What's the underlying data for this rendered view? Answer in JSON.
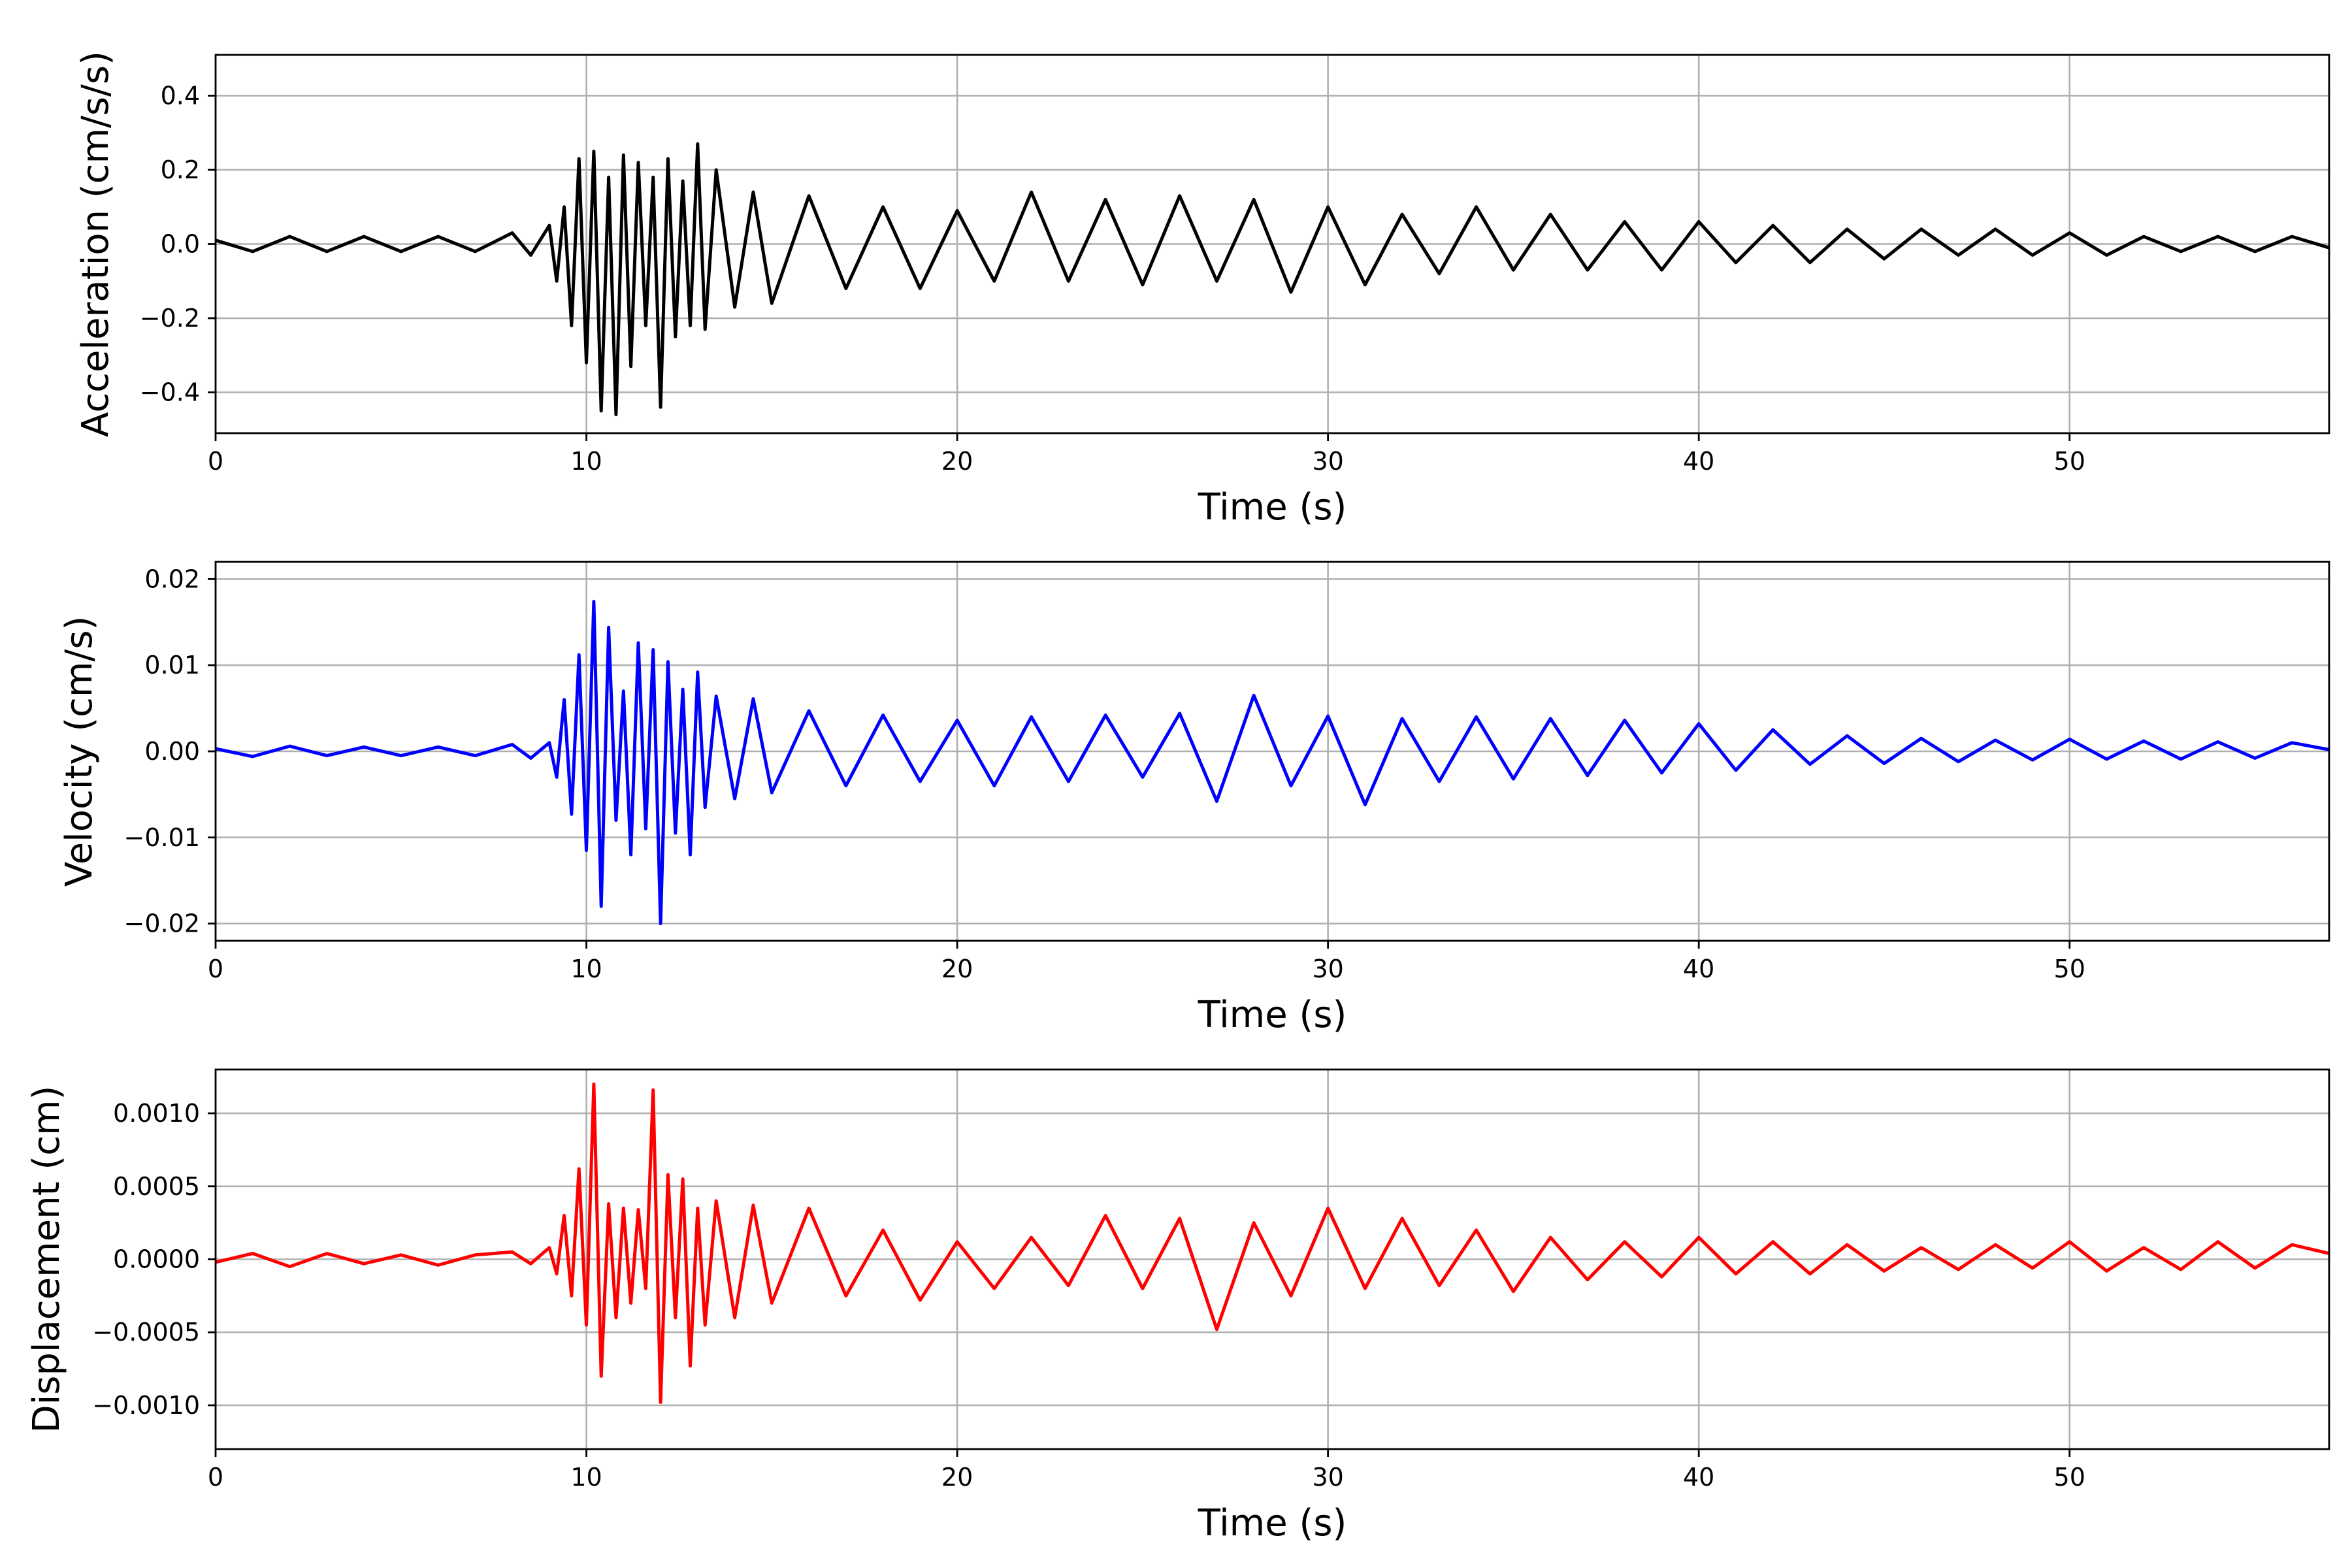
{
  "figure": {
    "background": "#ffffff",
    "grid_color": "#b0b0b0"
  },
  "chart_data": [
    {
      "type": "line",
      "title": "",
      "xlabel": "Time (s)",
      "ylabel": "Acceleration (cm/s/s)",
      "xlim": [
        0,
        57
      ],
      "ylim": [
        -0.51,
        0.51
      ],
      "xticks": [
        0,
        10,
        20,
        30,
        40,
        50
      ],
      "xtick_labels": [
        "0",
        "10",
        "20",
        "30",
        "40",
        "50"
      ],
      "yticks": [
        -0.4,
        -0.2,
        0.0,
        0.2,
        0.4
      ],
      "ytick_labels": [
        "−0.4",
        "−0.2",
        "0.0",
        "0.2",
        "0.4"
      ],
      "grid": true,
      "series": [
        {
          "color": "#000000",
          "x": [
            0,
            1,
            2,
            3,
            4,
            5,
            6,
            7,
            8,
            8.5,
            9,
            9.2,
            9.4,
            9.6,
            9.8,
            10,
            10.2,
            10.4,
            10.6,
            10.8,
            11,
            11.2,
            11.4,
            11.6,
            11.8,
            12,
            12.2,
            12.4,
            12.6,
            12.8,
            13,
            13.2,
            13.5,
            14,
            14.5,
            15,
            16,
            17,
            18,
            19,
            20,
            21,
            22,
            23,
            24,
            25,
            26,
            27,
            28,
            29,
            30,
            31,
            32,
            33,
            34,
            35,
            36,
            37,
            38,
            39,
            40,
            41,
            42,
            43,
            44,
            45,
            46,
            47,
            48,
            49,
            50,
            51,
            52,
            53,
            54,
            55,
            56,
            57
          ],
          "y": [
            0.01,
            -0.02,
            0.02,
            -0.02,
            0.02,
            -0.02,
            0.02,
            -0.02,
            0.03,
            -0.03,
            0.05,
            -0.1,
            0.1,
            -0.22,
            0.23,
            -0.32,
            0.25,
            -0.45,
            0.18,
            -0.46,
            0.24,
            -0.33,
            0.22,
            -0.22,
            0.18,
            -0.44,
            0.23,
            -0.25,
            0.17,
            -0.22,
            0.27,
            -0.23,
            0.2,
            -0.17,
            0.14,
            -0.16,
            0.13,
            -0.12,
            0.1,
            -0.12,
            0.09,
            -0.1,
            0.14,
            -0.1,
            0.12,
            -0.11,
            0.13,
            -0.1,
            0.12,
            -0.13,
            0.1,
            -0.11,
            0.08,
            -0.08,
            0.1,
            -0.07,
            0.08,
            -0.07,
            0.06,
            -0.07,
            0.06,
            -0.05,
            0.05,
            -0.05,
            0.04,
            -0.04,
            0.04,
            -0.03,
            0.04,
            -0.03,
            0.03,
            -0.03,
            0.02,
            -0.02,
            0.02,
            -0.02,
            0.02,
            -0.01
          ]
        }
      ]
    },
    {
      "type": "line",
      "title": "",
      "xlabel": "Time (s)",
      "ylabel": "Velocity (cm/s)",
      "xlim": [
        0,
        57
      ],
      "ylim": [
        -0.022,
        0.022
      ],
      "xticks": [
        0,
        10,
        20,
        30,
        40,
        50
      ],
      "xtick_labels": [
        "0",
        "10",
        "20",
        "30",
        "40",
        "50"
      ],
      "yticks": [
        -0.02,
        -0.01,
        0.0,
        0.01,
        0.02
      ],
      "ytick_labels": [
        "−0.02",
        "−0.01",
        "0.00",
        "0.01",
        "0.02"
      ],
      "grid": true,
      "series": [
        {
          "color": "#0000ff",
          "x": [
            0,
            1,
            2,
            3,
            4,
            5,
            6,
            7,
            8,
            8.5,
            9,
            9.2,
            9.4,
            9.6,
            9.8,
            10,
            10.2,
            10.4,
            10.6,
            10.8,
            11,
            11.2,
            11.4,
            11.6,
            11.8,
            12,
            12.2,
            12.4,
            12.6,
            12.8,
            13,
            13.2,
            13.5,
            14,
            14.5,
            15,
            16,
            17,
            18,
            19,
            20,
            21,
            22,
            23,
            24,
            25,
            26,
            27,
            28,
            29,
            30,
            31,
            32,
            33,
            34,
            35,
            36,
            37,
            38,
            39,
            40,
            41,
            42,
            43,
            44,
            45,
            46,
            47,
            48,
            49,
            50,
            51,
            52,
            53,
            54,
            55,
            56,
            57
          ],
          "y": [
            0.0003,
            -0.0006,
            0.0006,
            -0.0005,
            0.0005,
            -0.0005,
            0.0005,
            -0.0005,
            0.0008,
            -0.0008,
            0.001,
            -0.003,
            0.006,
            -0.0073,
            0.0112,
            -0.0115,
            0.0174,
            -0.018,
            0.0144,
            -0.008,
            0.007,
            -0.012,
            0.0126,
            -0.009,
            0.0118,
            -0.02,
            0.0104,
            -0.0095,
            0.0072,
            -0.012,
            0.0092,
            -0.0065,
            0.0064,
            -0.0055,
            0.0061,
            -0.0048,
            0.0047,
            -0.004,
            0.0042,
            -0.0035,
            0.0036,
            -0.004,
            0.004,
            -0.0035,
            0.0042,
            -0.003,
            0.0044,
            -0.0058,
            0.0065,
            -0.004,
            0.0041,
            -0.0062,
            0.0038,
            -0.0035,
            0.004,
            -0.0032,
            0.0038,
            -0.0028,
            0.0036,
            -0.0025,
            0.0032,
            -0.0022,
            0.0025,
            -0.0015,
            0.0018,
            -0.0014,
            0.0015,
            -0.0012,
            0.0013,
            -0.001,
            0.0014,
            -0.0009,
            0.0012,
            -0.0009,
            0.0011,
            -0.0008,
            0.001,
            0.0002
          ]
        }
      ]
    },
    {
      "type": "line",
      "title": "",
      "xlabel": "Time (s)",
      "ylabel": "Displacement (cm)",
      "xlim": [
        0,
        57
      ],
      "ylim": [
        -0.0013,
        0.0013
      ],
      "xticks": [
        0,
        10,
        20,
        30,
        40,
        50
      ],
      "xtick_labels": [
        "0",
        "10",
        "20",
        "30",
        "40",
        "50"
      ],
      "yticks": [
        -0.001,
        -0.0005,
        0.0,
        0.0005,
        0.001
      ],
      "ytick_labels": [
        "−0.0010",
        "−0.0005",
        "0.0000",
        "0.0005",
        "0.0010"
      ],
      "grid": true,
      "series": [
        {
          "color": "#ff0000",
          "x": [
            0,
            1,
            2,
            3,
            4,
            5,
            6,
            7,
            8,
            8.5,
            9,
            9.2,
            9.4,
            9.6,
            9.8,
            10,
            10.2,
            10.4,
            10.6,
            10.8,
            11,
            11.2,
            11.4,
            11.6,
            11.8,
            12,
            12.2,
            12.4,
            12.6,
            12.8,
            13,
            13.2,
            13.5,
            14,
            14.5,
            15,
            16,
            17,
            18,
            19,
            20,
            21,
            22,
            23,
            24,
            25,
            26,
            27,
            28,
            29,
            30,
            31,
            32,
            33,
            34,
            35,
            36,
            37,
            38,
            39,
            40,
            41,
            42,
            43,
            44,
            45,
            46,
            47,
            48,
            49,
            50,
            51,
            52,
            53,
            54,
            55,
            56,
            57
          ],
          "y": [
            -2e-05,
            4e-05,
            -5e-05,
            4e-05,
            -3e-05,
            3e-05,
            -4e-05,
            3e-05,
            5e-05,
            -3e-05,
            8e-05,
            -0.0001,
            0.0003,
            -0.00025,
            0.00062,
            -0.00045,
            0.0012,
            -0.0008,
            0.00038,
            -0.0004,
            0.00035,
            -0.0003,
            0.00034,
            -0.0002,
            0.00116,
            -0.00098,
            0.00058,
            -0.0004,
            0.00055,
            -0.00073,
            0.00035,
            -0.00045,
            0.0004,
            -0.0004,
            0.00037,
            -0.0003,
            0.00035,
            -0.00025,
            0.0002,
            -0.00028,
            0.00012,
            -0.0002,
            0.00015,
            -0.00018,
            0.0003,
            -0.0002,
            0.00028,
            -0.00048,
            0.00025,
            -0.00025,
            0.00035,
            -0.0002,
            0.00028,
            -0.00018,
            0.0002,
            -0.00022,
            0.00015,
            -0.00014,
            0.00012,
            -0.00012,
            0.00015,
            -0.0001,
            0.00012,
            -0.0001,
            0.0001,
            -8e-05,
            8e-05,
            -7e-05,
            0.0001,
            -6e-05,
            0.00012,
            -8e-05,
            8e-05,
            -7e-05,
            0.00012,
            -6e-05,
            0.0001,
            4e-05
          ]
        }
      ]
    }
  ]
}
